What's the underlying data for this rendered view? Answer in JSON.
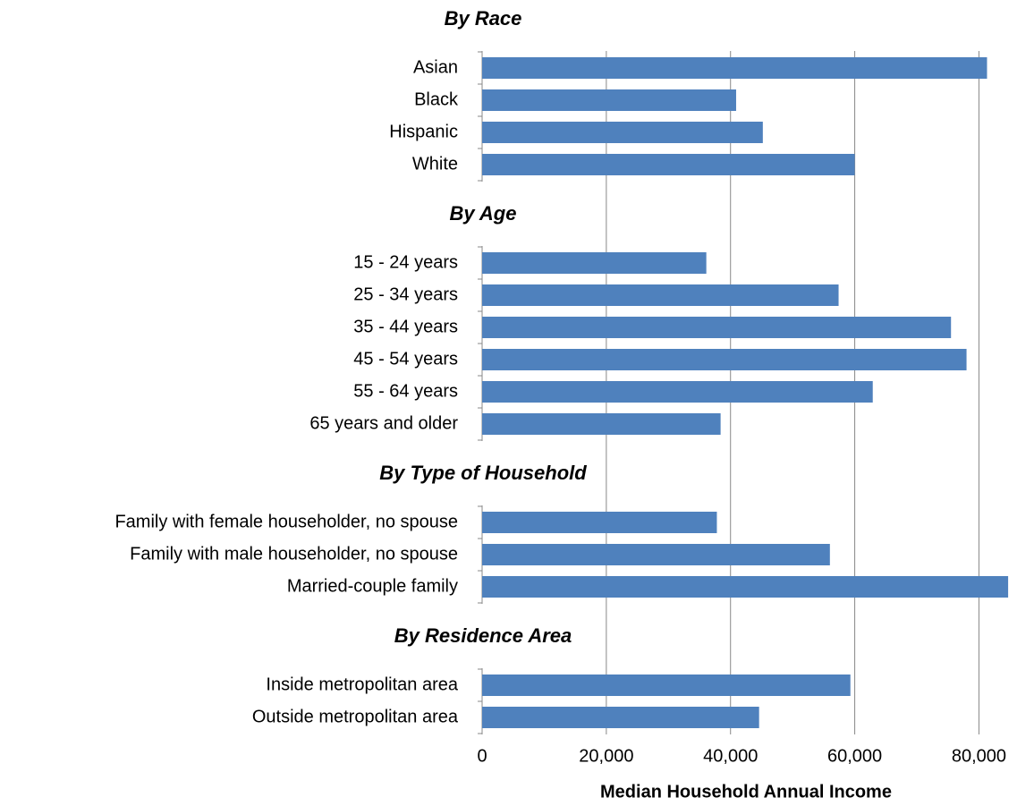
{
  "chart_data": {
    "type": "bar",
    "orientation": "horizontal",
    "color": "#4f81bd",
    "grid": true,
    "xlabel": "Median Household Annual Income",
    "xlim": [
      0,
      88000
    ],
    "xticks": [
      0,
      {
        "value": 20000,
        "label": "20,000"
      },
      {
        "value": 40000,
        "label": "40,000"
      },
      {
        "value": 60000,
        "label": "60,000"
      },
      {
        "value": 80000,
        "label": "80,000"
      }
    ],
    "groups": [
      {
        "title": "By Race",
        "categories": [
          "Asian",
          "Black",
          "Hispanic",
          "White"
        ],
        "values": [
          81300,
          40900,
          45200,
          60000
        ]
      },
      {
        "title": "By Age",
        "categories": [
          "15 - 24 years",
          "25 - 34 years",
          "35 - 44 years",
          "45 - 54 years",
          "55 - 64 years",
          "65 years and older"
        ],
        "values": [
          36100,
          57400,
          75500,
          78000,
          62900,
          38400
        ]
      },
      {
        "title": "By Type of Household",
        "categories": [
          "Family with female householder, no spouse",
          "Family with male householder, no spouse",
          "Married-couple family"
        ],
        "values": [
          37800,
          56000,
          84700
        ]
      },
      {
        "title": "By Residence Area",
        "categories": [
          "Inside metropolitan area",
          "Outside metropolitan area"
        ],
        "values": [
          59300,
          44600
        ]
      }
    ]
  }
}
